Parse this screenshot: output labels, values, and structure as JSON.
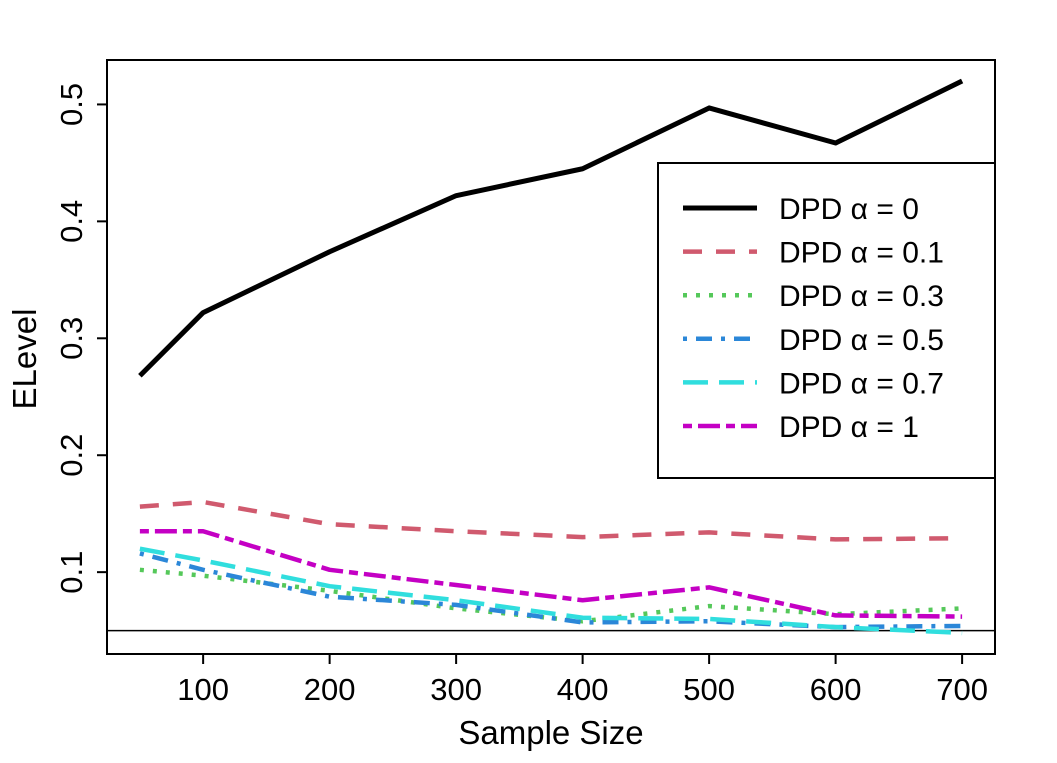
{
  "figure": {
    "background": "#ffffff"
  },
  "chart_data": {
    "type": "line",
    "title": "",
    "xlabel": "Sample Size",
    "ylabel": "ELevel",
    "x": [
      50,
      100,
      200,
      300,
      400,
      500,
      600,
      700
    ],
    "x_tick_values": [
      100,
      200,
      300,
      400,
      500,
      600,
      700
    ],
    "x_tick_labels": [
      "100",
      "200",
      "300",
      "400",
      "500",
      "600",
      "700"
    ],
    "y_tick_values": [
      0.1,
      0.2,
      0.3,
      0.4,
      0.5
    ],
    "y_tick_labels": [
      "0.1",
      "0.2",
      "0.3",
      "0.4",
      "0.5"
    ],
    "xlim": [
      24,
      726
    ],
    "ylim": [
      0.03,
      0.538
    ],
    "grid": false,
    "legend_position": "topright",
    "reference_line": {
      "value": 0.05,
      "color": "#000000"
    },
    "series": [
      {
        "name": "DPD α = 0",
        "color": "#000000",
        "linetype": "solid",
        "values": [
          0.268,
          0.322,
          0.374,
          0.422,
          0.445,
          0.497,
          0.467,
          0.52
        ]
      },
      {
        "name": "DPD α = 0.1",
        "color": "#D05A6E",
        "linetype": "dashed",
        "values": [
          0.156,
          0.16,
          0.141,
          0.135,
          0.13,
          0.134,
          0.128,
          0.129
        ]
      },
      {
        "name": "DPD α = 0.3",
        "color": "#55C85A",
        "linetype": "dotted",
        "values": [
          0.102,
          0.097,
          0.084,
          0.069,
          0.058,
          0.071,
          0.064,
          0.069
        ]
      },
      {
        "name": "DPD α = 0.5",
        "color": "#2B87D8",
        "linetype": "dotdash",
        "values": [
          0.116,
          0.102,
          0.079,
          0.072,
          0.057,
          0.058,
          0.053,
          0.054
        ]
      },
      {
        "name": "DPD α = 0.7",
        "color": "#30DEDE",
        "linetype": "longdash",
        "values": [
          0.12,
          0.11,
          0.088,
          0.076,
          0.061,
          0.06,
          0.053,
          0.048
        ]
      },
      {
        "name": "DPD α = 1",
        "color": "#C400C4",
        "linetype": "twodash",
        "values": [
          0.135,
          0.135,
          0.102,
          0.089,
          0.076,
          0.087,
          0.063,
          0.062
        ]
      }
    ]
  }
}
